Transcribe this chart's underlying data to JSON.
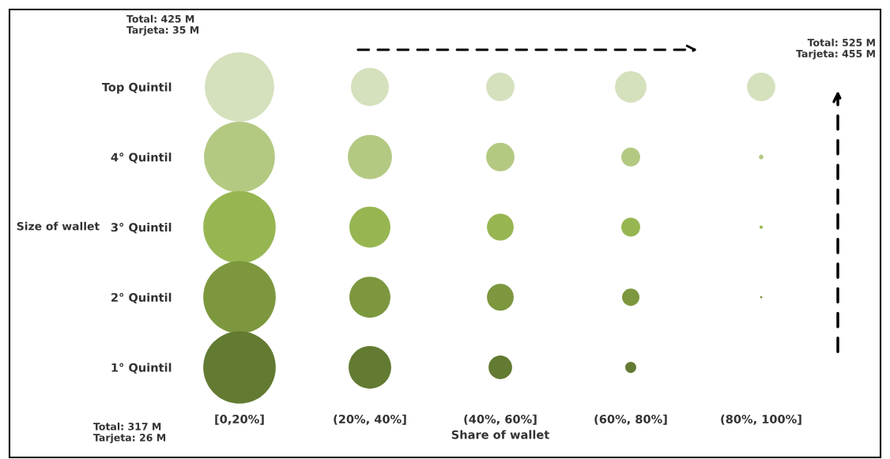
{
  "chart_data": {
    "type": "bubble",
    "xlabel": "Share of wallet",
    "ylabel": "Size of wallet",
    "categories": [
      "[0,20%]",
      "(20%, 40%]",
      "(40%, 60%]",
      "(60%, 80%]",
      "(80%, 100%]"
    ],
    "ylim": [
      1,
      5
    ],
    "yticks": [
      {
        "value": 5,
        "label": "Top Quintil"
      },
      {
        "value": 4,
        "label": "4° Quintil"
      },
      {
        "value": 3,
        "label": "3° Quintil"
      },
      {
        "value": 2,
        "label": "2° Quintil"
      },
      {
        "value": 1,
        "label": "1° Quintil"
      }
    ],
    "series": [
      {
        "color": "#d5e0bd",
        "values": [
          5,
          5,
          5,
          5,
          5
        ],
        "sizes": [
          0.915,
          0.272,
          0.153,
          0.189,
          0.153
        ]
      },
      {
        "color": "#b3c982",
        "values": [
          4,
          4,
          4,
          4,
          4
        ],
        "sizes": [
          0.957,
          0.37,
          0.153,
          0.068,
          0.004
        ]
      },
      {
        "color": "#97b652",
        "values": [
          3,
          3,
          3,
          3,
          3
        ],
        "sizes": [
          1,
          0.32,
          0.137,
          0.068,
          0.002
        ]
      },
      {
        "color": "#7c973d",
        "values": [
          2,
          2,
          2,
          2,
          2
        ],
        "sizes": [
          1,
          0.32,
          0.137,
          0.057,
          0.001
        ]
      },
      {
        "color": "#627a31",
        "values": [
          1,
          1,
          1,
          1,
          null
        ],
        "sizes": [
          1,
          0.345,
          0.106,
          0.023,
          null
        ]
      }
    ],
    "annotations": [
      "Total: 425 M\nTarjeta: 35 M",
      "Total: 525 M\nTarjeta: 455 M",
      "Total: 317 M\nTarjeta: 26 M"
    ],
    "legend": false,
    "grid": false
  }
}
